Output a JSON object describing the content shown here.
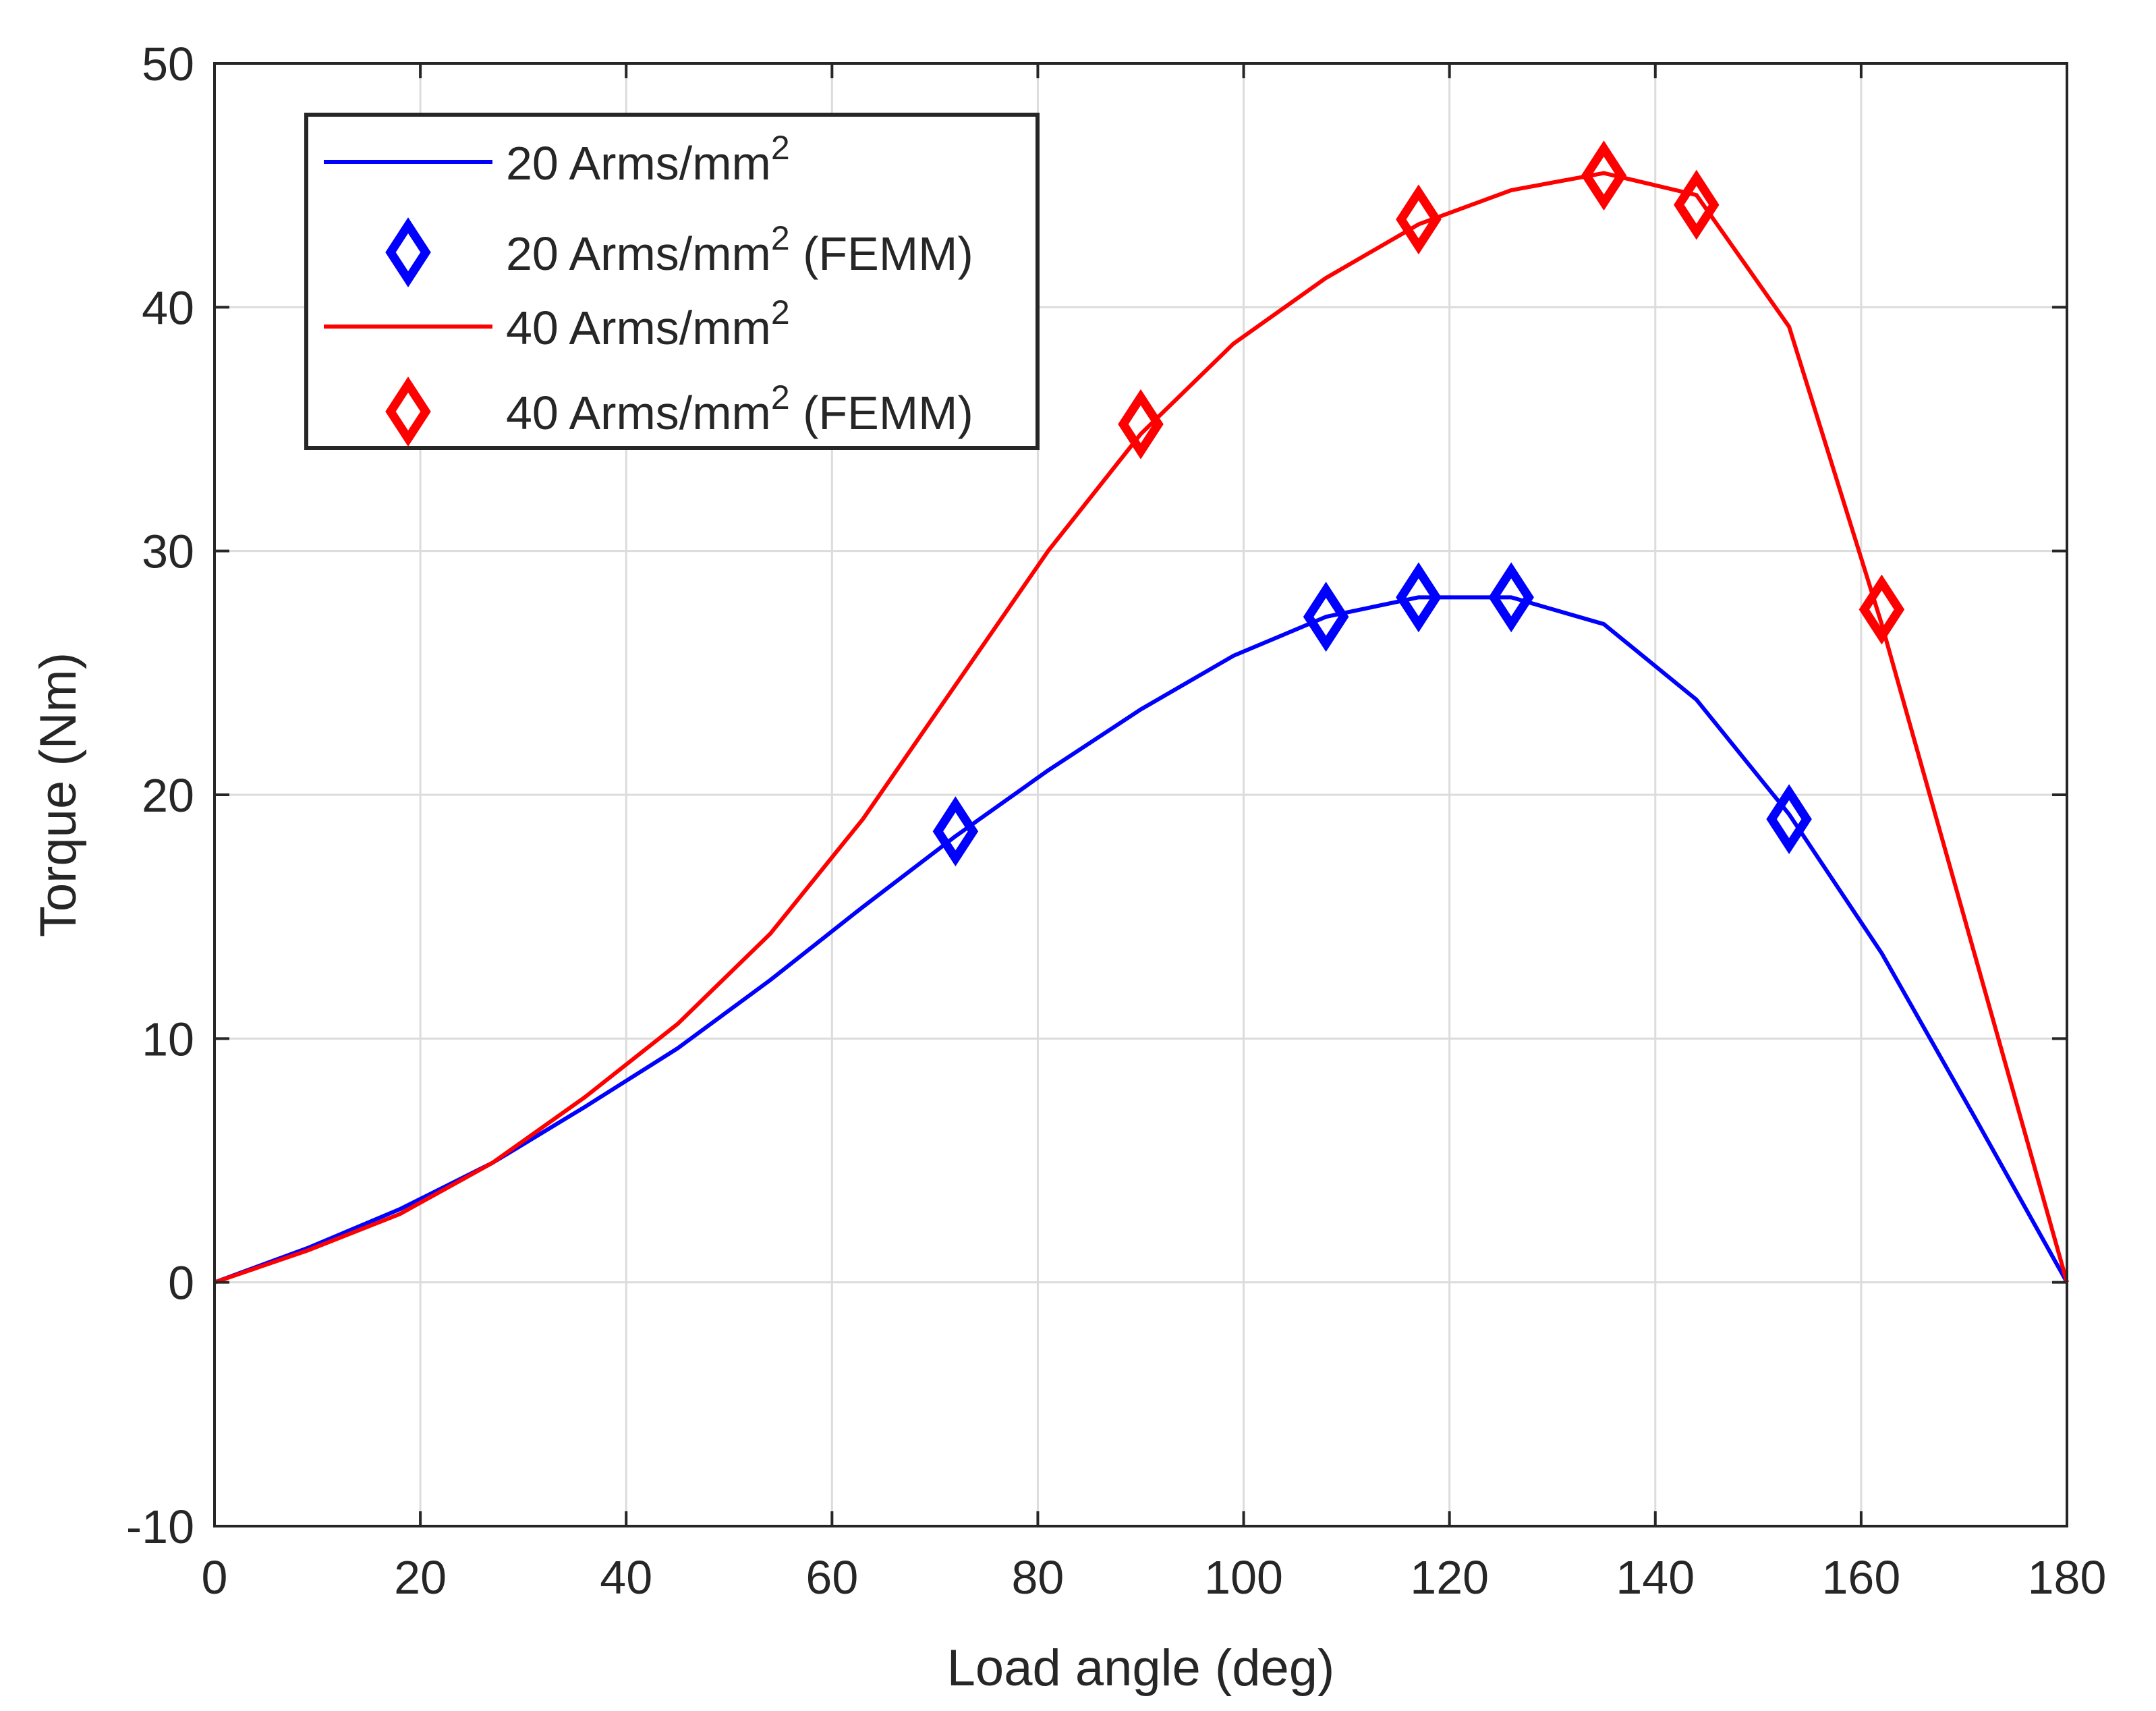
{
  "chart_data": {
    "type": "line",
    "xlabel": "Load angle (deg)",
    "ylabel": "Torque (Nm)",
    "xlim": [
      0,
      180
    ],
    "ylim": [
      -10,
      50
    ],
    "xticks": [
      0,
      20,
      40,
      60,
      80,
      100,
      120,
      140,
      160,
      180
    ],
    "yticks": [
      -10,
      0,
      10,
      20,
      30,
      40,
      50
    ],
    "xtick_labels": [
      "0",
      "20",
      "40",
      "60",
      "80",
      "100",
      "120",
      "140",
      "160",
      "180"
    ],
    "ytick_labels": [
      "-10",
      "0",
      "10",
      "20",
      "30",
      "40",
      "50"
    ],
    "grid": true,
    "legend_position": "top-left",
    "series": [
      {
        "name": "20 Arms/mm²",
        "legend_main": "20 Arms/mm",
        "legend_sup": "2",
        "legend_suffix": "",
        "style": "line",
        "color": "#0000ff",
        "x": [
          0,
          9,
          18,
          27,
          36,
          45,
          54,
          63,
          72,
          81,
          90,
          99,
          108,
          117,
          126,
          135,
          144,
          153,
          162,
          171,
          180
        ],
        "y": [
          0,
          1.4,
          3.0,
          4.9,
          7.2,
          9.6,
          12.4,
          15.4,
          18.3,
          21.0,
          23.5,
          25.7,
          27.3,
          28.1,
          28.1,
          27.0,
          23.9,
          19.2,
          13.5,
          6.8,
          0
        ]
      },
      {
        "name": "20 Arms/mm² (FEMM)",
        "legend_main": "20 Arms/mm",
        "legend_sup": "2",
        "legend_suffix": " (FEMM)",
        "style": "marker",
        "marker": "diamond",
        "color": "#0000ff",
        "x": [
          72,
          108,
          117,
          126,
          153
        ],
        "y": [
          18.5,
          27.3,
          28.1,
          28.1,
          19.0
        ]
      },
      {
        "name": "40 Arms/mm²",
        "legend_main": "40 Arms/mm",
        "legend_sup": "2",
        "legend_suffix": "",
        "style": "line",
        "color": "#ff0000",
        "x": [
          0,
          9,
          18,
          27,
          36,
          45,
          54,
          63,
          72,
          81,
          90,
          99,
          108,
          117,
          126,
          135,
          144,
          153,
          162,
          171,
          180
        ],
        "y": [
          0,
          1.3,
          2.8,
          4.9,
          7.6,
          10.6,
          14.3,
          19.0,
          24.5,
          30.0,
          34.8,
          38.5,
          41.2,
          43.4,
          44.8,
          45.5,
          44.6,
          39.2,
          27.0,
          13.5,
          0
        ]
      },
      {
        "name": "40 Arms/mm² (FEMM)",
        "legend_main": "40 Arms/mm",
        "legend_sup": "2",
        "legend_suffix": " (FEMM)",
        "style": "marker",
        "marker": "diamond",
        "color": "#ff0000",
        "x": [
          90,
          117,
          135,
          144,
          162
        ],
        "y": [
          35.2,
          43.6,
          45.4,
          44.2,
          27.6
        ]
      }
    ]
  }
}
